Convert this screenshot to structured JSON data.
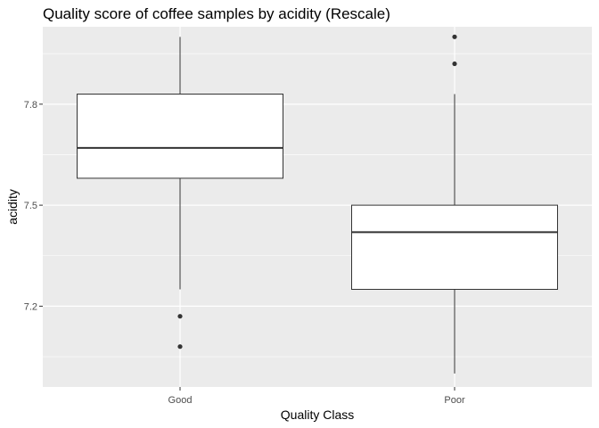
{
  "chart_data": {
    "type": "boxplot",
    "title": "Quality score of coffee samples by acidity (Rescale)",
    "xlabel": "Quality Class",
    "ylabel": "acidity",
    "categories": [
      "Good",
      "Poor"
    ],
    "ylim": [
      6.96,
      8.03
    ],
    "yticks": [
      7.2,
      7.5,
      7.8
    ],
    "ytick_labels": [
      "7.2",
      "7.5",
      "7.8"
    ],
    "grid": true,
    "boxes": [
      {
        "category": "Good",
        "whisker_low": 7.25,
        "q1": 7.58,
        "median": 7.67,
        "q3": 7.83,
        "whisker_high": 8.0,
        "outliers": [
          7.17,
          7.08
        ]
      },
      {
        "category": "Poor",
        "whisker_low": 7.0,
        "q1": 7.25,
        "median": 7.42,
        "q3": 7.5,
        "whisker_high": 7.83,
        "outliers": [
          8.0,
          7.92
        ]
      }
    ],
    "colors": {
      "panel_bg": "#ebebeb",
      "grid": "#ffffff",
      "box_fill": "#ffffff",
      "box_stroke": "#333333"
    }
  }
}
